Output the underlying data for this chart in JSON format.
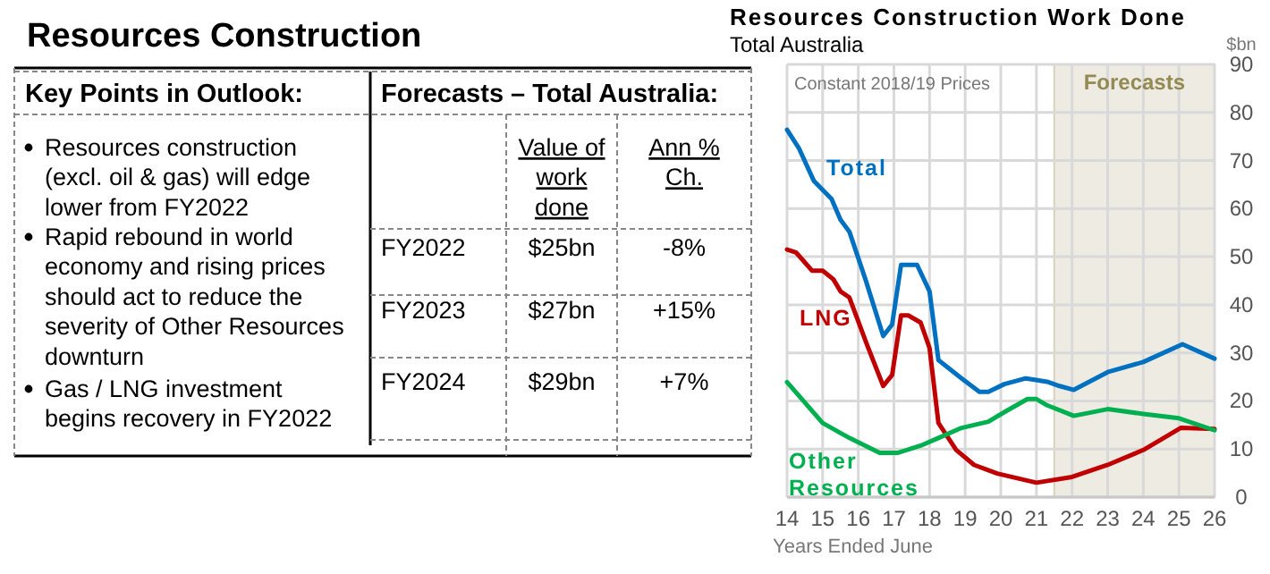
{
  "chart_data": [
    {
      "type": "other",
      "title": "Resources Construction",
      "annotations": [
        "Key Points in Outlook:",
        "Forecasts – Total Australia:",
        "Resources construction (excl. oil & gas) will edge lower from FY2022",
        "Rapid rebound in world economy and rising prices should act to reduce the severity of Other Resources downturn",
        "Gas / LNG investment begins recovery in FY2022",
        "Value of work done",
        "Ann % Ch.",
        "FY2022",
        "$25bn",
        "-8%",
        "FY2023",
        "$27bn",
        "+15%",
        "FY2024",
        "$29bn",
        "+7%"
      ]
    },
    {
      "type": "line",
      "title": "Resources Construction Work Done",
      "subtitle": "Total Australia",
      "xlabel": "Years Ended June",
      "ylabel": "$bn",
      "annotations": [
        "Constant 2018/19 Prices"
      ],
      "xlim": [
        14,
        26
      ],
      "xticks": [
        14,
        15,
        16,
        17,
        18,
        19,
        20,
        21,
        22,
        23,
        24,
        25,
        26
      ],
      "ylim": [
        0,
        90
      ],
      "yticks": [
        0,
        10,
        20,
        30,
        40,
        50,
        60,
        70,
        80,
        90
      ],
      "grid": true,
      "bands": [
        {
          "axis": "x",
          "from": 21.5,
          "to": 26,
          "label": "Forecasts",
          "color": "#eeebe3"
        }
      ],
      "series": [
        {
          "name": "Total",
          "color": "#0070c0",
          "x": [
            14,
            14.33,
            14.75,
            15.25,
            15.5,
            15.75,
            16.2,
            16.7,
            16.95,
            17.2,
            17.65,
            18,
            18.25,
            18.9,
            19.4,
            19.65,
            20.1,
            20.7,
            20.95,
            21.3,
            21.65,
            22.05,
            23,
            24,
            25.1,
            26
          ],
          "values": [
            76.4,
            72.6,
            65.8,
            62,
            57.7,
            55.2,
            45.3,
            33.5,
            35.9,
            48.3,
            48.3,
            42.8,
            28.5,
            24.7,
            21.9,
            21.9,
            23.5,
            24.7,
            24.4,
            24,
            23.1,
            22.3,
            26,
            28.1,
            31.8,
            28.8
          ]
        },
        {
          "name": "LNG",
          "color": "#c00000",
          "x": [
            14,
            14.25,
            14.7,
            15,
            15.3,
            15.5,
            15.75,
            16.25,
            16.7,
            16.95,
            17.2,
            17.4,
            17.75,
            18,
            18.25,
            18.75,
            19.25,
            19.9,
            21,
            22,
            23,
            24,
            25.05,
            26
          ],
          "values": [
            51.5,
            50.9,
            47.1,
            47.1,
            45.3,
            42.8,
            41.5,
            31.6,
            23.1,
            25.4,
            37.8,
            37.8,
            36.3,
            31,
            15.4,
            9.8,
            6.7,
            4.9,
            3,
            4.2,
            6.7,
            9.8,
            14.4,
            14.2
          ]
        },
        {
          "name": "Other Resources",
          "color": "#00b050",
          "x": [
            14,
            15,
            15.75,
            16.6,
            17.1,
            17.75,
            18.25,
            18.9,
            19.65,
            20.15,
            20.75,
            21,
            21.3,
            22.05,
            23,
            24,
            25,
            26
          ],
          "values": [
            23.9,
            15.4,
            12.3,
            9.2,
            9.2,
            10.7,
            12.3,
            14.4,
            15.7,
            17.9,
            20.4,
            20.4,
            19.1,
            16.9,
            18.3,
            17.3,
            16.4,
            13.9
          ]
        }
      ]
    }
  ]
}
